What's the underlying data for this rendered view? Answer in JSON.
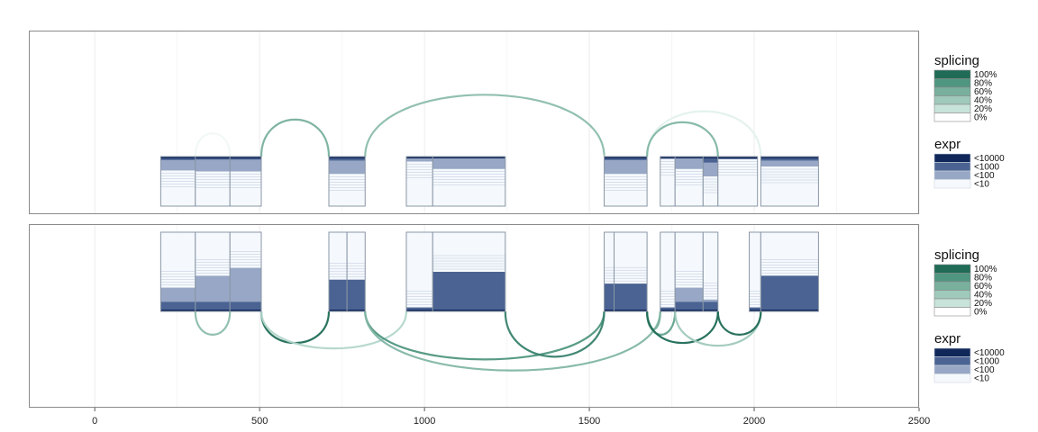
{
  "chart_data": {
    "type": "sashimi",
    "xlim": [
      -200,
      2500
    ],
    "x_ticks": [
      0,
      500,
      1000,
      1500,
      2000,
      2500
    ],
    "x_tick_labels": [
      "0",
      "500",
      "1000",
      "1500",
      "2000",
      "2500"
    ],
    "grid": true,
    "legend_placement": "right",
    "colors": {
      "splicing": [
        "#ffffff",
        "#c7e3da",
        "#9fc9bb",
        "#78b09d",
        "#4f9680",
        "#1f6b56"
      ],
      "expr": [
        "#f5f9fd",
        "#97a7c5",
        "#4a6392",
        "#10275a"
      ],
      "panel_border": "#8a8a8a",
      "grid": "#ececec",
      "exon_border": "#8a96a5"
    },
    "legends": [
      {
        "panel": 0,
        "splicing_title": "splicing",
        "splicing_labels": [
          "100%",
          "80%",
          "60%",
          "40%",
          "20%",
          "0%"
        ],
        "expr_title": "expr",
        "expr_labels": [
          "<10000",
          "<1000",
          "<100",
          "<10"
        ]
      },
      {
        "panel": 1,
        "splicing_title": "splicing",
        "splicing_labels": [
          "100%",
          "80%",
          "60%",
          "40%",
          "20%",
          "0%"
        ],
        "expr_title": "expr",
        "expr_labels": [
          "<10000",
          "<1000",
          "<100",
          "<10"
        ]
      }
    ],
    "panels": [
      {
        "position": "top",
        "exons": [
          {
            "start": 200,
            "end": 305,
            "high_frac": 0.07,
            "mid_frac": 0.28
          },
          {
            "start": 305,
            "end": 410,
            "high_frac": 0.06,
            "mid_frac": 0.3
          },
          {
            "start": 410,
            "end": 505,
            "high_frac": 0.06,
            "mid_frac": 0.3
          },
          {
            "start": 710,
            "end": 820,
            "high_frac": 0.08,
            "mid_frac": 0.35
          },
          {
            "start": 945,
            "end": 1025,
            "high_frac": 0.02,
            "mid_frac": 0.1
          },
          {
            "start": 1025,
            "end": 1245,
            "high_frac": 0.03,
            "mid_frac": 0.25
          },
          {
            "start": 1545,
            "end": 1675,
            "high_frac": 0.07,
            "mid_frac": 0.35
          },
          {
            "start": 1715,
            "end": 1760,
            "high_frac": 0.0,
            "mid_frac": 0.05
          },
          {
            "start": 1760,
            "end": 1845,
            "high_frac": 0.03,
            "mid_frac": 0.25
          },
          {
            "start": 1845,
            "end": 1890,
            "high_frac": 0.12,
            "mid_frac": 0.4
          },
          {
            "start": 1890,
            "end": 2010,
            "high_frac": 0.05,
            "mid_frac": 0.05
          },
          {
            "start": 2020,
            "end": 2195,
            "high_frac": 0.08,
            "mid_frac": 0.2
          }
        ],
        "junctions": [
          {
            "from": 505,
            "to": 710,
            "direction": "up",
            "height": 0.22,
            "splicing": 0.6
          },
          {
            "from": 820,
            "to": 1545,
            "direction": "up",
            "height": 0.4,
            "splicing": 0.5
          },
          {
            "from": 1245,
            "to": 1545,
            "direction": "up",
            "height": 0.0,
            "splicing": 0.0
          },
          {
            "from": 1675,
            "to": 2020,
            "direction": "up",
            "height": 0.28,
            "splicing": 0.1
          },
          {
            "from": 1675,
            "to": 1890,
            "direction": "up",
            "height": 0.2,
            "splicing": 0.55
          },
          {
            "from": 305,
            "to": 410,
            "direction": "up",
            "height": 0.12,
            "splicing": 0.05
          }
        ]
      },
      {
        "position": "bottom",
        "exons": [
          {
            "start": 200,
            "end": 305,
            "high_frac": 0.0,
            "mid_frac": 0.3
          },
          {
            "start": 305,
            "end": 410,
            "high_frac": 0.0,
            "mid_frac": 0.45
          },
          {
            "start": 410,
            "end": 505,
            "high_frac": 0.0,
            "mid_frac": 0.55
          },
          {
            "start": 710,
            "end": 765,
            "high_frac": 0.03,
            "mid_frac": 0.4
          },
          {
            "start": 765,
            "end": 820,
            "high_frac": 0.03,
            "mid_frac": 0.4
          },
          {
            "start": 945,
            "end": 1025,
            "high_frac": 0.0,
            "mid_frac": 0.05
          },
          {
            "start": 1025,
            "end": 1245,
            "high_frac": 0.05,
            "mid_frac": 0.5
          },
          {
            "start": 1545,
            "end": 1575,
            "high_frac": 0.05,
            "mid_frac": 0.35
          },
          {
            "start": 1575,
            "end": 1675,
            "high_frac": 0.05,
            "mid_frac": 0.35
          },
          {
            "start": 1715,
            "end": 1760,
            "high_frac": 0.0,
            "mid_frac": 0.05
          },
          {
            "start": 1760,
            "end": 1845,
            "high_frac": 0.0,
            "mid_frac": 0.3
          },
          {
            "start": 1845,
            "end": 1890,
            "high_frac": 0.0,
            "mid_frac": 0.15
          },
          {
            "start": 1985,
            "end": 2020,
            "high_frac": 0.0,
            "mid_frac": 0.05
          },
          {
            "start": 2020,
            "end": 2195,
            "high_frac": 0.03,
            "mid_frac": 0.45
          }
        ],
        "junctions": [
          {
            "from": 305,
            "to": 410,
            "direction": "down",
            "height": 0.12,
            "splicing": 0.5
          },
          {
            "from": 505,
            "to": 710,
            "direction": "down",
            "height": 0.18,
            "splicing": 1.0
          },
          {
            "from": 505,
            "to": 945,
            "direction": "down",
            "height": 0.22,
            "splicing": 0.3
          },
          {
            "from": 820,
            "to": 1545,
            "direction": "down",
            "height": 0.3,
            "splicing": 0.8
          },
          {
            "from": 820,
            "to": 1715,
            "direction": "down",
            "height": 0.38,
            "splicing": 0.55
          },
          {
            "from": 1245,
            "to": 1545,
            "direction": "down",
            "height": 0.28,
            "splicing": 0.9
          },
          {
            "from": 1675,
            "to": 1715,
            "direction": "down",
            "height": 0.08,
            "splicing": 0.6
          },
          {
            "from": 1675,
            "to": 1760,
            "direction": "down",
            "height": 0.12,
            "splicing": 0.7
          },
          {
            "from": 1675,
            "to": 1890,
            "direction": "down",
            "height": 0.18,
            "splicing": 1.0
          },
          {
            "from": 1760,
            "to": 2020,
            "direction": "down",
            "height": 0.2,
            "splicing": 0.4
          },
          {
            "from": 1890,
            "to": 2020,
            "direction": "down",
            "height": 0.12,
            "splicing": 1.0
          }
        ]
      }
    ]
  }
}
